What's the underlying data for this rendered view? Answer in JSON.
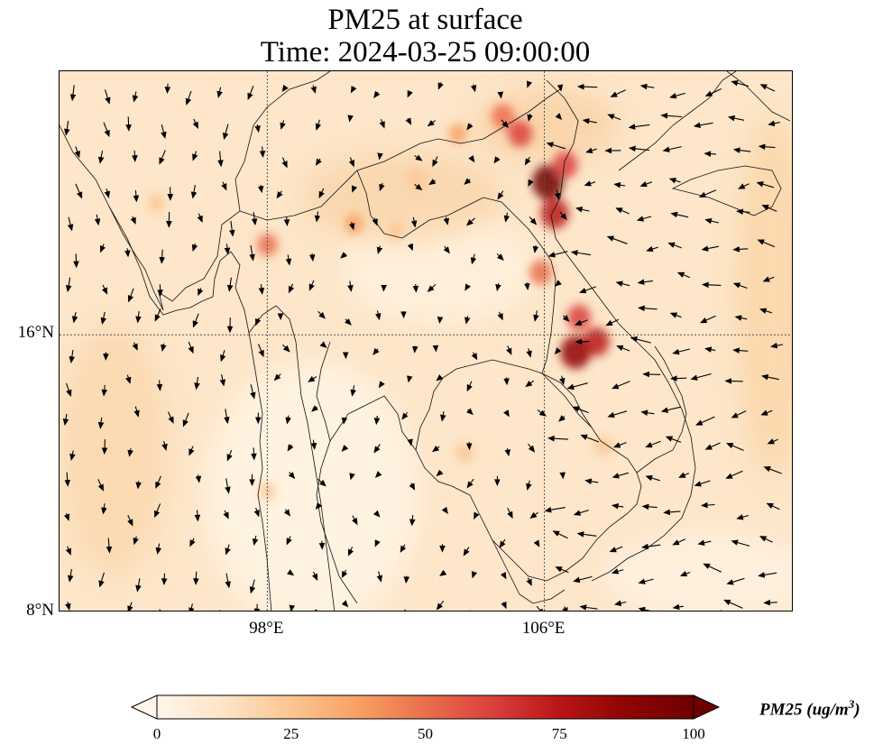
{
  "title": {
    "line1": "PM25 at surface",
    "line2": "Time: 2024-03-25 09:00:00"
  },
  "map": {
    "extent": {
      "lon_min": 92.0,
      "lon_max": 113.2,
      "lat_min": 8.0,
      "lat_max": 23.6
    },
    "lat_ticks": [
      {
        "value": 8,
        "label": "8°N"
      },
      {
        "value": 16,
        "label": "16°N"
      }
    ],
    "lon_ticks": [
      {
        "value": 98,
        "label": "98°E"
      },
      {
        "value": 106,
        "label": "106°E"
      }
    ],
    "gridlines": "dotted",
    "field": "PM25",
    "wind_vectors": true,
    "hotspots": [
      {
        "lon": 104.8,
        "lat": 22.3,
        "value": 55
      },
      {
        "lon": 105.3,
        "lat": 21.8,
        "value": 60
      },
      {
        "lon": 106.1,
        "lat": 20.4,
        "value": 95
      },
      {
        "lon": 106.3,
        "lat": 19.5,
        "value": 80
      },
      {
        "lon": 106.6,
        "lat": 20.9,
        "value": 65
      },
      {
        "lon": 105.9,
        "lat": 17.8,
        "value": 55
      },
      {
        "lon": 107.0,
        "lat": 16.5,
        "value": 60
      },
      {
        "lon": 106.9,
        "lat": 15.5,
        "value": 90
      },
      {
        "lon": 107.5,
        "lat": 15.8,
        "value": 70
      },
      {
        "lon": 98.0,
        "lat": 18.6,
        "value": 45
      },
      {
        "lon": 100.5,
        "lat": 19.2,
        "value": 35
      },
      {
        "lon": 101.7,
        "lat": 19.0,
        "value": 30
      },
      {
        "lon": 102.3,
        "lat": 20.5,
        "value": 30
      },
      {
        "lon": 103.5,
        "lat": 21.8,
        "value": 35
      },
      {
        "lon": 94.8,
        "lat": 19.8,
        "value": 25
      },
      {
        "lon": 103.7,
        "lat": 12.6,
        "value": 30
      },
      {
        "lon": 107.7,
        "lat": 12.8,
        "value": 28
      },
      {
        "lon": 98.0,
        "lat": 11.5,
        "value": 25
      }
    ]
  },
  "colorbar": {
    "label": "PM25 (ug/m",
    "label_superscript": "3",
    "label_suffix": ")",
    "min": 0,
    "max": 100,
    "ticks": [
      {
        "value": 0,
        "label": "0"
      },
      {
        "value": 25,
        "label": "25"
      },
      {
        "value": 50,
        "label": "50"
      },
      {
        "value": 75,
        "label": "75"
      },
      {
        "value": 100,
        "label": "100"
      }
    ],
    "extend": "both",
    "colormap": [
      "#fff5eb",
      "#fee6ce",
      "#fdd0a2",
      "#fdae6b",
      "#fd8d3c",
      "#f16913",
      "#d94801",
      "#a63603",
      "#7f2704"
    ],
    "cmap_display": [
      "#fff5eb",
      "#fde4c6",
      "#fbc592",
      "#f7a162",
      "#ea6f4d",
      "#d9403d",
      "#b81616",
      "#8f0404",
      "#6e0000"
    ]
  }
}
